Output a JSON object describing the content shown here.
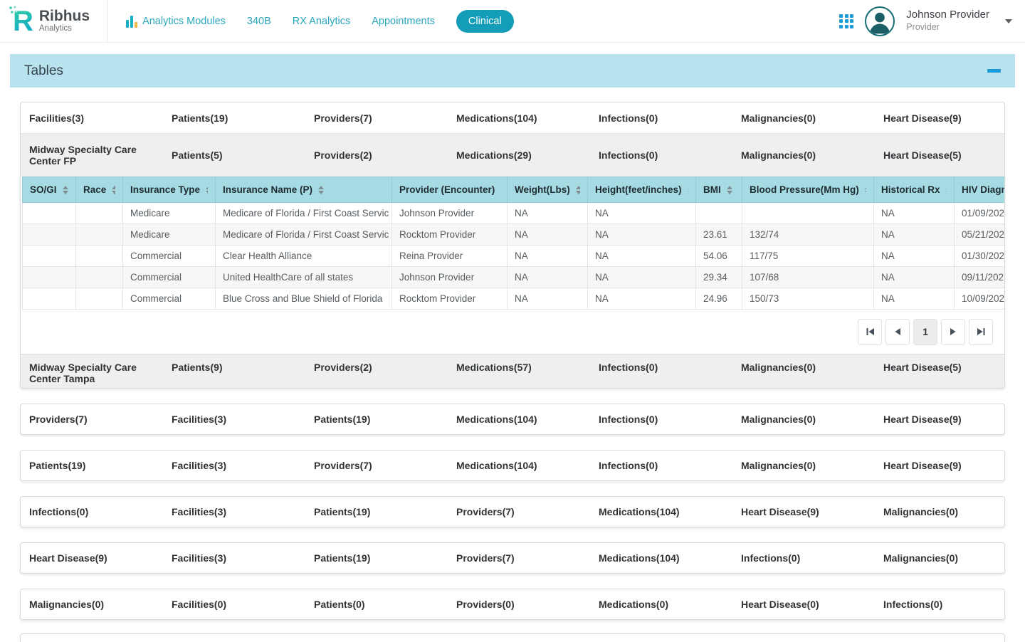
{
  "header": {
    "brand": {
      "name": "Ribhus",
      "sub": "Analytics",
      "letter": "R"
    },
    "nav": {
      "analytics_modules": "Analytics Modules",
      "b340": "340B",
      "rx_analytics": "RX Analytics",
      "appointments": "Appointments",
      "clinical": "Clinical"
    },
    "user": {
      "name": "Johnson Provider",
      "role": "Provider"
    }
  },
  "panel": {
    "title": "Tables"
  },
  "colors": {
    "accent_teal": "#149db8",
    "nav_teal": "#2aa6bb",
    "panel_blue": "#b8e2ee",
    "table_header_teal": "#a6dbe4",
    "collapse_blue": "#1b9cd8"
  },
  "overview": {
    "cells": [
      "Facilities(3)",
      "Patients(19)",
      "Providers(7)",
      "Medications(104)",
      "Infections(0)",
      "Malignancies(0)",
      "Heart Disease(9)"
    ],
    "toggle": "−"
  },
  "facility_fp": {
    "cells": [
      "Midway Specialty Care Center FP",
      "Patients(5)",
      "Providers(2)",
      "Medications(29)",
      "Infections(0)",
      "Malignancies(0)",
      "Heart Disease(5)"
    ],
    "toggle": "−"
  },
  "encounters_table": {
    "columns": [
      "SO/GI",
      "Race",
      "Insurance Type",
      "Insurance Name (P)",
      "Provider (Encounter)",
      "Weight(Lbs)",
      "Height(feet/inches)",
      "BMI",
      "Blood Pressure(Mm Hg)",
      "Historical Rx",
      "HIV Diagnosis"
    ],
    "rows": [
      [
        "",
        "",
        "Medicare",
        "Medicare of Florida / First Coast Servic",
        "Johnson Provider",
        "NA",
        "NA",
        "",
        "",
        "NA",
        "01/09/202"
      ],
      [
        "",
        "",
        "Medicare",
        "Medicare of Florida / First Coast Servic",
        "Rocktom Provider",
        "NA",
        "NA",
        "23.61",
        "132/74",
        "NA",
        "05/21/202"
      ],
      [
        "",
        "",
        "Commercial",
        "Clear Health Alliance",
        "Reina Provider",
        "NA",
        "NA",
        "54.06",
        "117/75",
        "NA",
        "01/30/202"
      ],
      [
        "",
        "",
        "Commercial",
        "United HealthCare of all states",
        "Johnson Provider",
        "NA",
        "NA",
        "29.34",
        "107/68",
        "NA",
        "09/11/202"
      ],
      [
        "",
        "",
        "Commercial",
        "Blue Cross and Blue Shield of Florida",
        "Rocktom Provider",
        "NA",
        "NA",
        "24.96",
        "150/73",
        "NA",
        "10/09/202"
      ]
    ],
    "pagination": {
      "current": "1"
    }
  },
  "facility_tampa": {
    "cells": [
      "Midway Specialty Care Center Tampa",
      "Patients(9)",
      "Providers(2)",
      "Medications(57)",
      "Infections(0)",
      "Malignancies(0)",
      "Heart Disease(5)"
    ],
    "toggle": "+"
  },
  "cards": [
    {
      "cells": [
        "Providers(7)",
        "Facilities(3)",
        "Patients(19)",
        "Medications(104)",
        "Infections(0)",
        "Malignancies(0)",
        "Heart Disease(9)"
      ],
      "toggle": "+"
    },
    {
      "cells": [
        "Patients(19)",
        "Facilities(3)",
        "Providers(7)",
        "Medications(104)",
        "Infections(0)",
        "Malignancies(0)",
        "Heart Disease(9)"
      ],
      "toggle": "+"
    },
    {
      "cells": [
        "Infections(0)",
        "Facilities(3)",
        "Patients(19)",
        "Providers(7)",
        "Medications(104)",
        "Heart Disease(9)",
        "Malignancies(0)"
      ],
      "toggle": "+"
    },
    {
      "cells": [
        "Heart Disease(9)",
        "Facilities(3)",
        "Patients(19)",
        "Providers(7)",
        "Medications(104)",
        "Infections(0)",
        "Malignancies(0)"
      ],
      "toggle": "+"
    },
    {
      "cells": [
        "Malignancies(0)",
        "Facilities(0)",
        "Patients(0)",
        "Providers(0)",
        "Medications(0)",
        "Heart Disease(0)",
        "Infections(0)"
      ],
      "toggle": "+"
    }
  ]
}
